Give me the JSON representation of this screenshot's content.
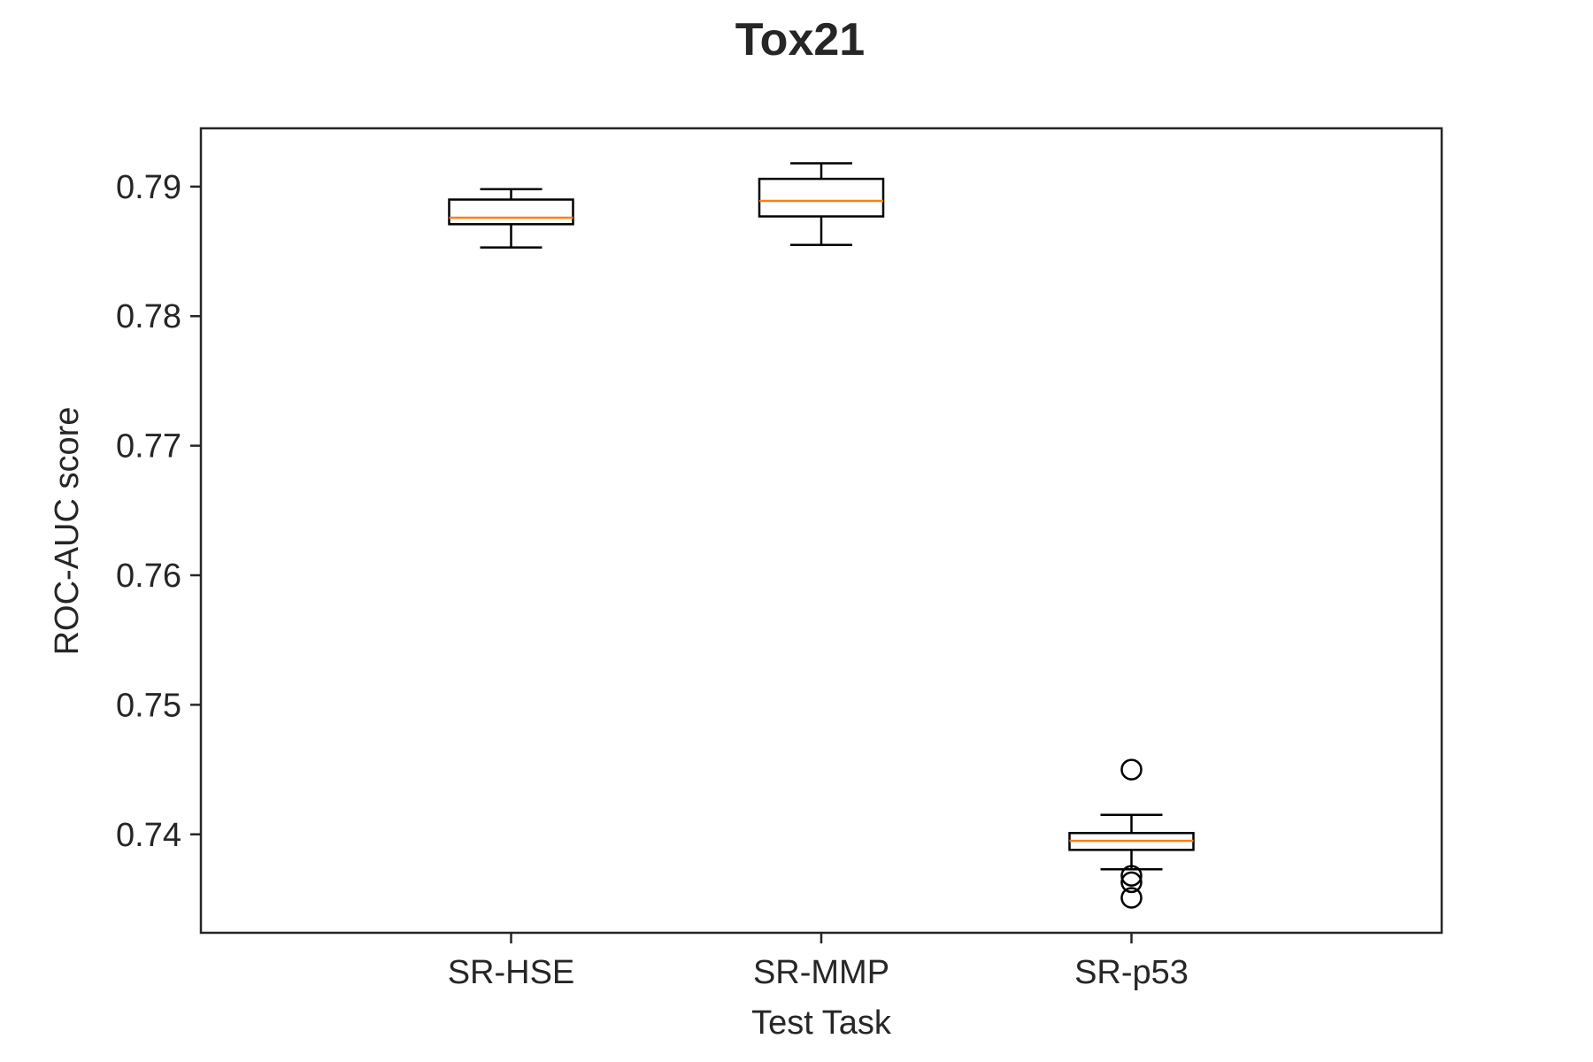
{
  "chart_data": {
    "type": "box",
    "title": "Tox21",
    "xlabel": "Test Task",
    "ylabel": "ROC-AUC score",
    "categories": [
      "SR-HSE",
      "SR-MMP",
      "SR-p53"
    ],
    "ylim": [
      0.7324,
      0.7945
    ],
    "yticks": [
      0.74,
      0.75,
      0.76,
      0.77,
      0.78,
      0.79
    ],
    "ytick_labels": [
      "0.74",
      "0.75",
      "0.76",
      "0.77",
      "0.78",
      "0.79"
    ],
    "grid": false,
    "boxes": [
      {
        "category": "SR-HSE",
        "whisker_low": 0.7853,
        "q1": 0.7871,
        "median": 0.7876,
        "q3": 0.789,
        "whisker_high": 0.7898,
        "outliers": []
      },
      {
        "category": "SR-MMP",
        "whisker_low": 0.7855,
        "q1": 0.7877,
        "median": 0.7889,
        "q3": 0.7906,
        "whisker_high": 0.7918,
        "outliers": []
      },
      {
        "category": "SR-p53",
        "whisker_low": 0.7373,
        "q1": 0.7388,
        "median": 0.7395,
        "q3": 0.7401,
        "whisker_high": 0.7415,
        "outliers": [
          0.745,
          0.7368,
          0.7363,
          0.7351
        ]
      }
    ],
    "colors": {
      "box": "#000000",
      "median": "#ff7f0e",
      "frame": "#262626"
    }
  }
}
